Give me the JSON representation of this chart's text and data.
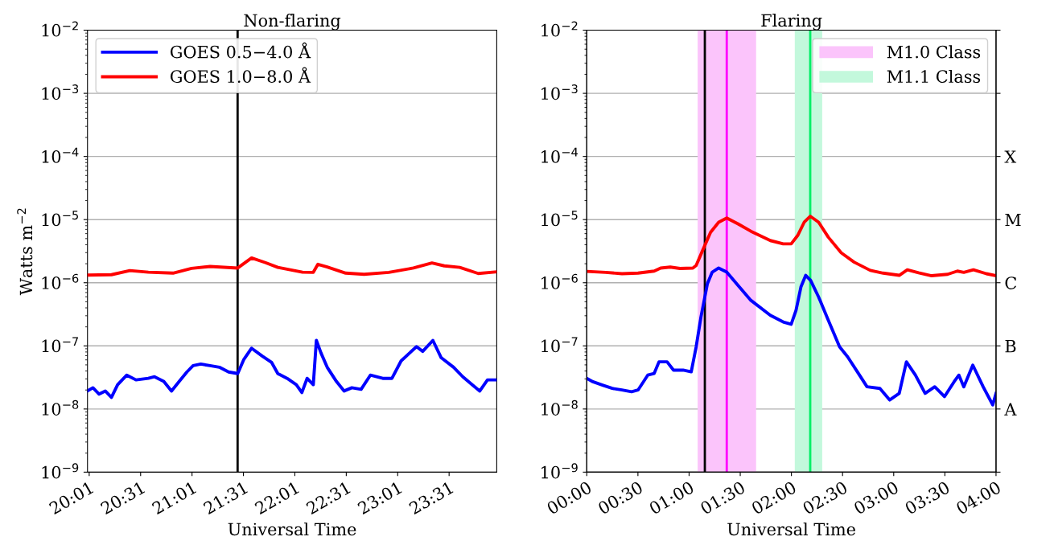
{
  "chart_data": [
    {
      "type": "line",
      "title": "Non-flaring",
      "xlabel": "Universal Time",
      "ylabel": "Watts m$^{−2}$",
      "log": "y",
      "grid": "y",
      "legend": "top left",
      "line_style": "solid",
      "marker": "none",
      "xlim": [
        20.0,
        23.98
      ],
      "xticks": [
        {
          "value": 20.0167,
          "label": "20:01"
        },
        {
          "value": 20.5167,
          "label": "20:31"
        },
        {
          "value": 21.0167,
          "label": "21:01"
        },
        {
          "value": 21.5167,
          "label": "21:31"
        },
        {
          "value": 22.0167,
          "label": "22:01"
        },
        {
          "value": 22.5167,
          "label": "22:31"
        },
        {
          "value": 23.0167,
          "label": "23:01"
        },
        {
          "value": 23.5167,
          "label": "23:31"
        }
      ],
      "ylim": [
        1e-09,
        0.01
      ],
      "yticks": [
        {
          "value": 1e-09,
          "label": "10$^{−9}$"
        },
        {
          "value": 1e-08,
          "label": "10$^{−8}$"
        },
        {
          "value": 1e-07,
          "label": "10$^{−7}$"
        },
        {
          "value": 1e-06,
          "label": "10$^{−6}$"
        },
        {
          "value": 1e-05,
          "label": "10$^{−5}$"
        },
        {
          "value": 0.0001,
          "label": "10$^{−4}$"
        },
        {
          "value": 0.001,
          "label": "10$^{−3}$"
        },
        {
          "value": 0.01,
          "label": "10$^{−2}$"
        }
      ],
      "ref_lines": [
        {
          "axis": "x",
          "value": 21.46,
          "color": "#000000",
          "line_style": "solid"
        }
      ],
      "series": [
        {
          "name": "GOES 0.5−4.0 Å",
          "color": "#0000ff",
          "x": [
            20.0,
            20.053,
            20.113,
            20.173,
            20.233,
            20.293,
            20.382,
            20.472,
            20.592,
            20.652,
            20.742,
            20.817,
            20.892,
            20.967,
            21.027,
            21.102,
            21.192,
            21.282,
            21.372,
            21.461,
            21.521,
            21.596,
            21.701,
            21.791,
            21.851,
            21.941,
            22.031,
            22.085,
            22.136,
            22.196,
            22.226,
            22.271,
            22.331,
            22.421,
            22.496,
            22.571,
            22.661,
            22.751,
            22.871,
            22.961,
            23.05,
            23.2,
            23.26,
            23.359,
            23.44,
            23.56,
            23.65,
            23.74,
            23.815,
            23.89,
            23.98
          ],
          "values": [
            1.93e-08,
            2.17e-08,
            1.72e-08,
            1.93e-08,
            1.53e-08,
            2.43e-08,
            3.44e-08,
            2.89e-08,
            3.06e-08,
            3.24e-08,
            2.73e-08,
            1.93e-08,
            2.73e-08,
            3.86e-08,
            4.86e-08,
            5.15e-08,
            4.86e-08,
            4.59e-08,
            3.86e-08,
            3.64e-08,
            6.12e-08,
            9.18e-08,
            6.87e-08,
            5.46e-08,
            3.64e-08,
            3.06e-08,
            2.43e-08,
            1.82e-08,
            3.06e-08,
            2.43e-08,
            1.22e-07,
            7.72e-08,
            4.59e-08,
            2.73e-08,
            1.93e-08,
            2.17e-08,
            2.05e-08,
            3.44e-08,
            3.06e-08,
            3.06e-08,
            5.78e-08,
            9.73e-08,
            8.18e-08,
            1.22e-07,
            6.49e-08,
            4.59e-08,
            3.24e-08,
            2.43e-08,
            1.93e-08,
            2.89e-08,
            2.89e-08
          ]
        },
        {
          "name": "GOES 1.0−8.0 Å",
          "color": "#ff0000",
          "x": [
            20.0,
            20.233,
            20.412,
            20.592,
            20.832,
            21.012,
            21.192,
            21.461,
            21.596,
            21.731,
            21.851,
            22.091,
            22.196,
            22.241,
            22.331,
            22.511,
            22.69,
            22.93,
            23.17,
            23.35,
            23.47,
            23.62,
            23.8,
            23.98
          ],
          "values": [
            1.32e-06,
            1.34e-06,
            1.56e-06,
            1.47e-06,
            1.42e-06,
            1.69e-06,
            1.81e-06,
            1.71e-06,
            2.47e-06,
            2.08e-06,
            1.75e-06,
            1.47e-06,
            1.46e-06,
            1.96e-06,
            1.78e-06,
            1.42e-06,
            1.36e-06,
            1.46e-06,
            1.71e-06,
            2.06e-06,
            1.85e-06,
            1.75e-06,
            1.4e-06,
            1.49e-06
          ]
        }
      ]
    },
    {
      "type": "line",
      "title": "Flaring",
      "xlabel": "Universal Time",
      "log": "y",
      "grid": "y",
      "legend": "top right",
      "line_style": "solid",
      "marker": "none",
      "xlim": [
        0,
        4
      ],
      "xticks": [
        {
          "value": 0,
          "label": "00:00"
        },
        {
          "value": 0.5,
          "label": "00:30"
        },
        {
          "value": 1,
          "label": "01:00"
        },
        {
          "value": 1.5,
          "label": "01:30"
        },
        {
          "value": 2,
          "label": "02:00"
        },
        {
          "value": 2.5,
          "label": "02:30"
        },
        {
          "value": 3,
          "label": "03:00"
        },
        {
          "value": 3.5,
          "label": "03:30"
        },
        {
          "value": 4,
          "label": "04:00"
        }
      ],
      "ylim": [
        1e-09,
        0.01
      ],
      "yticks": [
        {
          "value": 1e-09,
          "label": "10$^{−9}$"
        },
        {
          "value": 1e-08,
          "label": "10$^{−8}$"
        },
        {
          "value": 1e-07,
          "label": "10$^{−7}$"
        },
        {
          "value": 1e-06,
          "label": "10$^{−6}$"
        },
        {
          "value": 1e-05,
          "label": "10$^{−5}$"
        },
        {
          "value": 0.0001,
          "label": "10$^{−4}$"
        },
        {
          "value": 0.001,
          "label": "10$^{−3}$"
        },
        {
          "value": 0.01,
          "label": "10$^{−2}$"
        }
      ],
      "y2_categories": [
        null,
        null,
        "X",
        "M",
        "C",
        "B",
        "A",
        null
      ],
      "ref_lines": [
        {
          "axis": "x",
          "value": 1.154,
          "color": "#000000",
          "line_style": "solid"
        },
        {
          "axis": "x",
          "value": 1.368,
          "color": "#ff00ff",
          "line_style": "solid"
        },
        {
          "axis": "x",
          "value": 2.184,
          "color": "#00ee66",
          "line_style": "solid"
        }
      ],
      "series": [
        {
          "name": "M1.0 Class",
          "type": "area",
          "color": "#fbc4fb",
          "x": [
            1.084,
            1.655
          ],
          "values": [
            0.01,
            0.01
          ]
        },
        {
          "name": "M1.1 Class",
          "type": "area",
          "color": "#c3f8dc",
          "x": [
            2.033,
            2.301
          ],
          "values": [
            0.01,
            0.01
          ]
        },
        {
          "color": "#ff0000",
          "x": [
            0,
            0.186,
            0.344,
            0.501,
            0.659,
            0.722,
            0.816,
            0.911,
            1.037,
            1.069,
            1.132,
            1.21,
            1.289,
            1.368,
            1.478,
            1.604,
            1.794,
            1.92,
            1.998,
            2.061,
            2.125,
            2.184,
            2.266,
            2.361,
            2.487,
            2.613,
            2.771,
            2.897,
            3.054,
            3.133,
            3.243,
            3.37,
            3.527,
            3.622,
            3.685,
            3.779,
            3.905,
            4.0
          ],
          "values": [
            1.51e-06,
            1.46e-06,
            1.39e-06,
            1.42e-06,
            1.53e-06,
            1.71e-06,
            1.77e-06,
            1.68e-06,
            1.71e-06,
            1.88e-06,
            3.24e-06,
            6.3e-06,
            9.08e-06,
            1.06e-05,
            8.55e-06,
            6.55e-06,
            4.66e-06,
            4.13e-06,
            4.13e-06,
            5.59e-06,
            9.08e-06,
            1.13e-05,
            9.08e-06,
            5.26e-06,
            2.98e-06,
            2.12e-06,
            1.57e-06,
            1.42e-06,
            1.31e-06,
            1.6e-06,
            1.44e-06,
            1.29e-06,
            1.36e-06,
            1.53e-06,
            1.46e-06,
            1.6e-06,
            1.39e-06,
            1.29e-06
          ]
        },
        {
          "color": "#0000ff",
          "x": [
            0,
            0.06,
            0.154,
            0.249,
            0.344,
            0.438,
            0.501,
            0.596,
            0.659,
            0.706,
            0.785,
            0.848,
            0.942,
            1.021,
            1.069,
            1.116,
            1.179,
            1.226,
            1.289,
            1.368,
            1.478,
            1.604,
            1.794,
            1.92,
            1.998,
            2.045,
            2.093,
            2.14,
            2.188,
            2.266,
            2.361,
            2.471,
            2.55,
            2.645,
            2.739,
            2.865,
            2.96,
            3.054,
            3.124,
            3.212,
            3.307,
            3.401,
            3.496,
            3.59,
            3.637,
            3.685,
            3.773,
            3.874,
            3.968,
            4.0
          ],
          "values": [
            3.05e-08,
            2.7e-08,
            2.39e-08,
            2.12e-08,
            2e-08,
            1.88e-08,
            2e-08,
            3.44e-08,
            3.66e-08,
            5.59e-08,
            5.59e-08,
            4.13e-08,
            4.13e-08,
            3.88e-08,
            9.64e-08,
            2.87e-07,
            9.64e-07,
            1.47e-06,
            1.71e-06,
            1.47e-06,
            9.08e-07,
            5.26e-07,
            3.05e-07,
            2.39e-07,
            2.2e-07,
            3.66e-07,
            8.55e-07,
            1.31e-06,
            1.09e-06,
            5.94e-07,
            2.54e-07,
            9.64e-08,
            6.7e-08,
            3.88e-08,
            2.25e-08,
            2.12e-08,
            1.39e-08,
            1.77e-08,
            5.59e-08,
            3.44e-08,
            1.77e-08,
            2.25e-08,
            1.57e-08,
            2.7e-08,
            3.44e-08,
            2.25e-08,
            4.95e-08,
            2.25e-08,
            1.16e-08,
            1.77e-08
          ]
        }
      ]
    }
  ]
}
